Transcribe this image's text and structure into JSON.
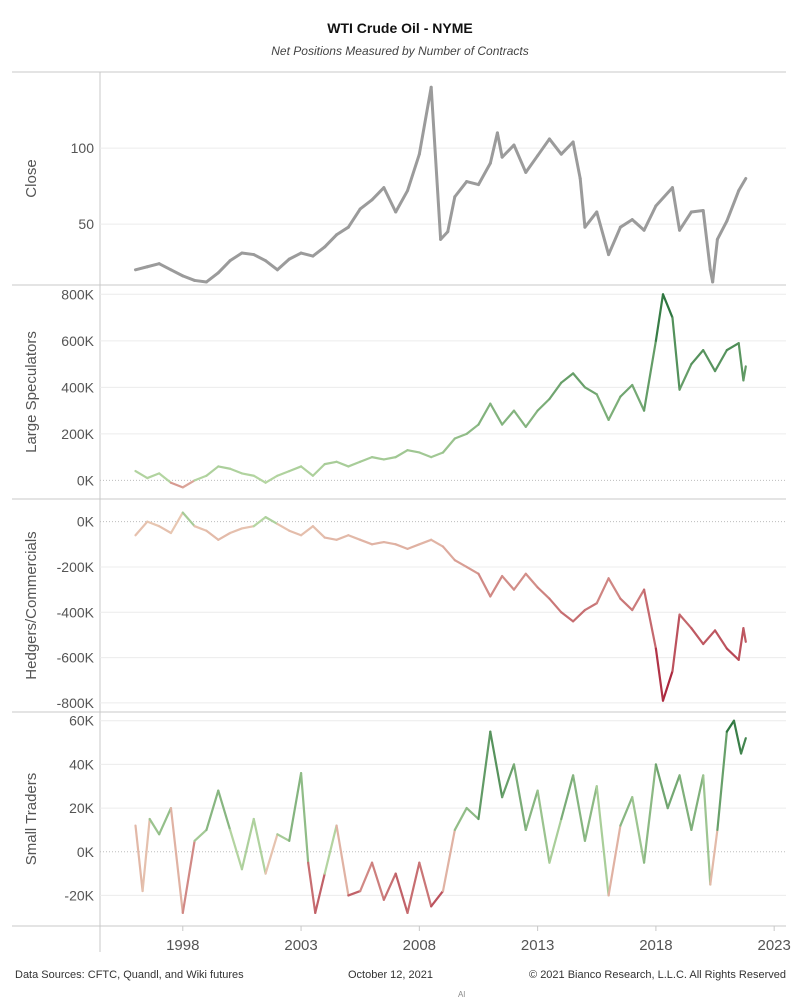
{
  "title": "WTI Crude Oil - NYME",
  "subtitle": "Net Positions Measured by Number of Contracts",
  "footer": {
    "source": "Data Sources: CFTC, Quandl, and Wiki futures",
    "date": "October 12, 2021",
    "copyright": "© 2021 Bianco Research, L.L.C. All Rights Reserved",
    "mark": "Al"
  },
  "colors": {
    "close": "#9b9b9b",
    "positive_light": "#b5d6a2",
    "positive_dark": "#1e6b34",
    "negative_light": "#e8c8b3",
    "negative_dark": "#a30f2c"
  },
  "chart_data": [
    {
      "type": "line",
      "ylabel": "Close",
      "ylim": [
        10,
        150
      ],
      "yticks": [
        50,
        100
      ],
      "ytick_labels": [
        "50",
        "100"
      ],
      "color_mode": "solid",
      "points": [
        [
          1996.0,
          20
        ],
        [
          1996.5,
          22
        ],
        [
          1997.0,
          24
        ],
        [
          1997.5,
          20
        ],
        [
          1998.0,
          16
        ],
        [
          1998.5,
          13
        ],
        [
          1999.0,
          12
        ],
        [
          1999.5,
          18
        ],
        [
          2000.0,
          26
        ],
        [
          2000.5,
          31
        ],
        [
          2001.0,
          30
        ],
        [
          2001.5,
          26
        ],
        [
          2002.0,
          20
        ],
        [
          2002.5,
          27
        ],
        [
          2003.0,
          31
        ],
        [
          2003.5,
          29
        ],
        [
          2004.0,
          35
        ],
        [
          2004.5,
          43
        ],
        [
          2005.0,
          48
        ],
        [
          2005.5,
          60
        ],
        [
          2006.0,
          66
        ],
        [
          2006.5,
          74
        ],
        [
          2007.0,
          58
        ],
        [
          2007.5,
          72
        ],
        [
          2008.0,
          96
        ],
        [
          2008.5,
          140
        ],
        [
          2008.9,
          40
        ],
        [
          2009.2,
          45
        ],
        [
          2009.5,
          68
        ],
        [
          2010.0,
          78
        ],
        [
          2010.5,
          76
        ],
        [
          2011.0,
          90
        ],
        [
          2011.3,
          110
        ],
        [
          2011.5,
          94
        ],
        [
          2012.0,
          102
        ],
        [
          2012.5,
          84
        ],
        [
          2013.0,
          95
        ],
        [
          2013.5,
          106
        ],
        [
          2014.0,
          96
        ],
        [
          2014.5,
          104
        ],
        [
          2014.8,
          80
        ],
        [
          2015.0,
          48
        ],
        [
          2015.5,
          58
        ],
        [
          2016.0,
          30
        ],
        [
          2016.5,
          48
        ],
        [
          2017.0,
          53
        ],
        [
          2017.5,
          46
        ],
        [
          2018.0,
          62
        ],
        [
          2018.7,
          74
        ],
        [
          2019.0,
          46
        ],
        [
          2019.5,
          58
        ],
        [
          2020.0,
          59
        ],
        [
          2020.3,
          20
        ],
        [
          2020.4,
          12
        ],
        [
          2020.6,
          40
        ],
        [
          2021.0,
          52
        ],
        [
          2021.5,
          72
        ],
        [
          2021.8,
          80
        ]
      ]
    },
    {
      "type": "line",
      "ylabel": "Large Speculators",
      "ylim": [
        -80000,
        840000
      ],
      "yticks": [
        0,
        200000,
        400000,
        600000,
        800000
      ],
      "ytick_labels": [
        "0K",
        "200K",
        "400K",
        "600K",
        "800K"
      ],
      "color_mode": "diverging",
      "points": [
        [
          1996.0,
          40000
        ],
        [
          1996.5,
          10000
        ],
        [
          1997.0,
          30000
        ],
        [
          1997.5,
          -10000
        ],
        [
          1998.0,
          -30000
        ],
        [
          1998.5,
          0
        ],
        [
          1999.0,
          20000
        ],
        [
          1999.5,
          60000
        ],
        [
          2000.0,
          50000
        ],
        [
          2000.5,
          30000
        ],
        [
          2001.0,
          20000
        ],
        [
          2001.5,
          -10000
        ],
        [
          2002.0,
          20000
        ],
        [
          2002.5,
          40000
        ],
        [
          2003.0,
          60000
        ],
        [
          2003.5,
          20000
        ],
        [
          2004.0,
          70000
        ],
        [
          2004.5,
          80000
        ],
        [
          2005.0,
          60000
        ],
        [
          2005.5,
          80000
        ],
        [
          2006.0,
          100000
        ],
        [
          2006.5,
          90000
        ],
        [
          2007.0,
          100000
        ],
        [
          2007.5,
          130000
        ],
        [
          2008.0,
          120000
        ],
        [
          2008.5,
          100000
        ],
        [
          2009.0,
          120000
        ],
        [
          2009.5,
          180000
        ],
        [
          2010.0,
          200000
        ],
        [
          2010.5,
          240000
        ],
        [
          2011.0,
          330000
        ],
        [
          2011.5,
          240000
        ],
        [
          2012.0,
          300000
        ],
        [
          2012.5,
          230000
        ],
        [
          2013.0,
          300000
        ],
        [
          2013.5,
          350000
        ],
        [
          2014.0,
          420000
        ],
        [
          2014.5,
          460000
        ],
        [
          2015.0,
          400000
        ],
        [
          2015.5,
          370000
        ],
        [
          2016.0,
          260000
        ],
        [
          2016.5,
          360000
        ],
        [
          2017.0,
          410000
        ],
        [
          2017.5,
          300000
        ],
        [
          2018.0,
          600000
        ],
        [
          2018.3,
          800000
        ],
        [
          2018.7,
          700000
        ],
        [
          2019.0,
          390000
        ],
        [
          2019.5,
          500000
        ],
        [
          2020.0,
          560000
        ],
        [
          2020.5,
          470000
        ],
        [
          2021.0,
          560000
        ],
        [
          2021.5,
          590000
        ],
        [
          2021.7,
          430000
        ],
        [
          2021.8,
          490000
        ]
      ]
    },
    {
      "type": "line",
      "ylabel": "Hedgers/Commercials",
      "ylim": [
        -840000,
        100000
      ],
      "yticks": [
        -800000,
        -600000,
        -400000,
        -200000,
        0
      ],
      "ytick_labels": [
        "-800K",
        "-600K",
        "-400K",
        "-200K",
        "0K"
      ],
      "color_mode": "diverging",
      "points": [
        [
          1996.0,
          -60000
        ],
        [
          1996.5,
          0
        ],
        [
          1997.0,
          -20000
        ],
        [
          1997.5,
          -50000
        ],
        [
          1998.0,
          40000
        ],
        [
          1998.5,
          -20000
        ],
        [
          1999.0,
          -40000
        ],
        [
          1999.5,
          -80000
        ],
        [
          2000.0,
          -50000
        ],
        [
          2000.5,
          -30000
        ],
        [
          2001.0,
          -20000
        ],
        [
          2001.5,
          20000
        ],
        [
          2002.0,
          -10000
        ],
        [
          2002.5,
          -40000
        ],
        [
          2003.0,
          -60000
        ],
        [
          2003.5,
          -20000
        ],
        [
          2004.0,
          -70000
        ],
        [
          2004.5,
          -80000
        ],
        [
          2005.0,
          -60000
        ],
        [
          2005.5,
          -80000
        ],
        [
          2006.0,
          -100000
        ],
        [
          2006.5,
          -90000
        ],
        [
          2007.0,
          -100000
        ],
        [
          2007.5,
          -120000
        ],
        [
          2008.0,
          -100000
        ],
        [
          2008.5,
          -80000
        ],
        [
          2009.0,
          -110000
        ],
        [
          2009.5,
          -170000
        ],
        [
          2010.0,
          -200000
        ],
        [
          2010.5,
          -230000
        ],
        [
          2011.0,
          -330000
        ],
        [
          2011.5,
          -240000
        ],
        [
          2012.0,
          -300000
        ],
        [
          2012.5,
          -230000
        ],
        [
          2013.0,
          -290000
        ],
        [
          2013.5,
          -340000
        ],
        [
          2014.0,
          -400000
        ],
        [
          2014.5,
          -440000
        ],
        [
          2015.0,
          -390000
        ],
        [
          2015.5,
          -360000
        ],
        [
          2016.0,
          -250000
        ],
        [
          2016.5,
          -340000
        ],
        [
          2017.0,
          -390000
        ],
        [
          2017.5,
          -300000
        ],
        [
          2018.0,
          -560000
        ],
        [
          2018.3,
          -790000
        ],
        [
          2018.7,
          -660000
        ],
        [
          2019.0,
          -410000
        ],
        [
          2019.5,
          -470000
        ],
        [
          2020.0,
          -540000
        ],
        [
          2020.5,
          -480000
        ],
        [
          2021.0,
          -560000
        ],
        [
          2021.5,
          -610000
        ],
        [
          2021.7,
          -470000
        ],
        [
          2021.8,
          -530000
        ]
      ]
    },
    {
      "type": "line",
      "ylabel": "Small Traders",
      "ylim": [
        -34000,
        64000
      ],
      "yticks": [
        -20000,
        0,
        20000,
        40000,
        60000
      ],
      "ytick_labels": [
        "-20K",
        "0K",
        "20K",
        "40K",
        "60K"
      ],
      "color_mode": "diverging",
      "points": [
        [
          1996.0,
          12000
        ],
        [
          1996.3,
          -18000
        ],
        [
          1996.6,
          15000
        ],
        [
          1997.0,
          8000
        ],
        [
          1997.5,
          20000
        ],
        [
          1998.0,
          -28000
        ],
        [
          1998.5,
          5000
        ],
        [
          1999.0,
          10000
        ],
        [
          1999.5,
          28000
        ],
        [
          2000.0,
          10000
        ],
        [
          2000.5,
          -8000
        ],
        [
          2001.0,
          15000
        ],
        [
          2001.5,
          -10000
        ],
        [
          2002.0,
          8000
        ],
        [
          2002.5,
          5000
        ],
        [
          2003.0,
          36000
        ],
        [
          2003.3,
          -5000
        ],
        [
          2003.6,
          -28000
        ],
        [
          2004.0,
          -10000
        ],
        [
          2004.5,
          12000
        ],
        [
          2005.0,
          -20000
        ],
        [
          2005.5,
          -18000
        ],
        [
          2006.0,
          -5000
        ],
        [
          2006.5,
          -22000
        ],
        [
          2007.0,
          -10000
        ],
        [
          2007.5,
          -28000
        ],
        [
          2008.0,
          -5000
        ],
        [
          2008.5,
          -25000
        ],
        [
          2009.0,
          -18000
        ],
        [
          2009.5,
          10000
        ],
        [
          2010.0,
          20000
        ],
        [
          2010.5,
          15000
        ],
        [
          2011.0,
          55000
        ],
        [
          2011.5,
          25000
        ],
        [
          2012.0,
          40000
        ],
        [
          2012.5,
          10000
        ],
        [
          2013.0,
          28000
        ],
        [
          2013.5,
          -5000
        ],
        [
          2014.0,
          15000
        ],
        [
          2014.5,
          35000
        ],
        [
          2015.0,
          5000
        ],
        [
          2015.5,
          30000
        ],
        [
          2016.0,
          -20000
        ],
        [
          2016.5,
          12000
        ],
        [
          2017.0,
          25000
        ],
        [
          2017.5,
          -5000
        ],
        [
          2018.0,
          40000
        ],
        [
          2018.5,
          20000
        ],
        [
          2019.0,
          35000
        ],
        [
          2019.5,
          10000
        ],
        [
          2020.0,
          35000
        ],
        [
          2020.3,
          -15000
        ],
        [
          2020.6,
          10000
        ],
        [
          2021.0,
          55000
        ],
        [
          2021.3,
          60000
        ],
        [
          2021.6,
          45000
        ],
        [
          2021.8,
          52000
        ]
      ]
    }
  ],
  "x_axis": {
    "ticks": [
      1998,
      2003,
      2008,
      2013,
      2018,
      2023
    ],
    "tick_labels": [
      "1998",
      "2003",
      "2008",
      "2013",
      "2018",
      "2023"
    ],
    "xlim": [
      1994.5,
      2023.5
    ]
  }
}
